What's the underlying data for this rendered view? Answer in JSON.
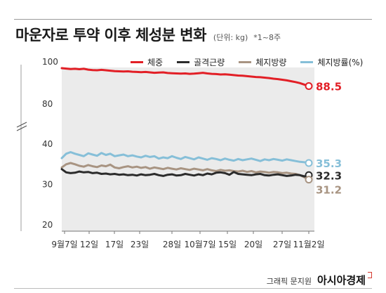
{
  "header": {
    "title": "마운자로 투약 이후 체성분 변화",
    "unit": "(단위: kg)",
    "note": "*1~8주"
  },
  "footer": {
    "credit": "그래픽 문지원",
    "brand": "아시아경제"
  },
  "colors": {
    "weight": "#e21f26",
    "skeletal_muscle": "#2b2b2b",
    "body_fat_mass": "#a89482",
    "body_fat_percent": "#86bfd8",
    "plot_bg": "#ebebeb"
  },
  "chart_data": {
    "type": "line",
    "title": "마운자로 투약 이후 체성분 변화",
    "xlabel": "",
    "ylabel": "",
    "y_ticks": [
      "100",
      "80",
      "40",
      "30",
      "20"
    ],
    "x_ticks": [
      "9월7일",
      "12일",
      "17일",
      "23일",
      "28일",
      "10월7일",
      "15일",
      "20일",
      "27일",
      "11월2일"
    ],
    "axis_break": "between 80 and 40",
    "grid": false,
    "legend_position": "top",
    "x_count": 57,
    "series": [
      {
        "name": "체중",
        "key": "weight",
        "end_label": "88.5",
        "values": [
          97.0,
          96.8,
          96.6,
          96.7,
          96.5,
          96.7,
          96.3,
          96.1,
          96.0,
          96.2,
          96.0,
          95.8,
          95.6,
          95.5,
          95.4,
          95.5,
          95.3,
          95.2,
          95.1,
          95.2,
          95.0,
          94.8,
          94.9,
          95.0,
          94.7,
          94.6,
          94.5,
          94.4,
          94.5,
          94.3,
          94.4,
          94.6,
          94.8,
          94.5,
          94.3,
          94.2,
          94.0,
          94.1,
          93.9,
          93.7,
          93.5,
          93.4,
          93.2,
          93.0,
          92.8,
          92.7,
          92.5,
          92.3,
          92.0,
          91.8,
          91.5,
          91.2,
          90.8,
          90.4,
          89.9,
          89.2,
          88.5
        ]
      },
      {
        "name": "골격근량",
        "key": "skeletal_muscle",
        "end_label": "32.3",
        "values": [
          33.8,
          33.0,
          32.8,
          32.9,
          33.2,
          33.0,
          33.1,
          32.8,
          32.9,
          32.6,
          32.7,
          32.5,
          32.6,
          32.4,
          32.5,
          32.3,
          32.4,
          32.2,
          32.5,
          32.3,
          32.4,
          32.6,
          32.3,
          32.1,
          32.4,
          32.5,
          32.2,
          32.3,
          32.6,
          32.4,
          32.2,
          32.5,
          32.3,
          32.7,
          32.5,
          32.9,
          33.0,
          32.8,
          32.4,
          33.1,
          32.6,
          32.5,
          32.4,
          32.3,
          32.5,
          32.6,
          32.3,
          32.2,
          32.4,
          32.5,
          32.3,
          32.1,
          32.2,
          32.4,
          32.3,
          32.0,
          32.3
        ]
      },
      {
        "name": "체지방량",
        "key": "body_fat_mass",
        "end_label": "31.2",
        "values": [
          34.2,
          35.0,
          35.3,
          35.0,
          34.6,
          34.4,
          34.8,
          34.5,
          34.3,
          34.7,
          34.5,
          34.9,
          34.2,
          34.0,
          34.3,
          34.5,
          34.2,
          34.4,
          34.1,
          34.3,
          33.9,
          34.2,
          34.0,
          33.8,
          34.1,
          33.9,
          33.7,
          34.0,
          33.8,
          33.6,
          33.9,
          33.7,
          33.5,
          33.8,
          33.5,
          33.3,
          33.6,
          33.4,
          33.5,
          33.3,
          33.2,
          33.4,
          33.1,
          33.3,
          33.0,
          33.2,
          33.1,
          32.9,
          33.1,
          33.0,
          32.8,
          32.9,
          32.7,
          32.6,
          32.3,
          31.8,
          31.2
        ]
      },
      {
        "name": "체지방률(%)",
        "key": "body_fat_percent",
        "end_label": "35.3",
        "values": [
          36.5,
          37.6,
          38.0,
          37.6,
          37.3,
          37.0,
          37.7,
          37.4,
          37.1,
          37.8,
          37.3,
          37.6,
          37.0,
          37.2,
          37.4,
          37.0,
          37.2,
          36.9,
          36.7,
          37.1,
          36.8,
          37.0,
          36.4,
          36.7,
          36.5,
          37.0,
          36.6,
          36.3,
          36.8,
          36.5,
          36.2,
          36.7,
          36.4,
          36.1,
          36.5,
          36.3,
          36.0,
          36.4,
          36.1,
          35.9,
          36.3,
          36.0,
          36.2,
          36.4,
          36.1,
          35.8,
          36.2,
          36.0,
          36.3,
          36.1,
          35.9,
          36.2,
          36.0,
          35.8,
          35.6,
          35.5,
          35.3
        ]
      }
    ]
  }
}
